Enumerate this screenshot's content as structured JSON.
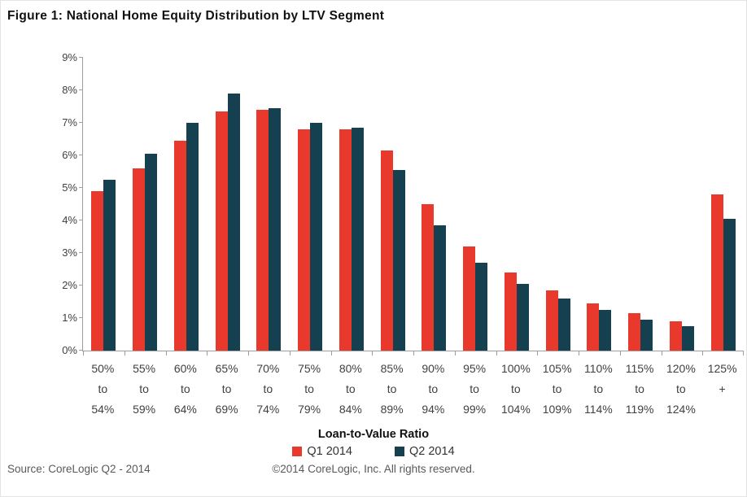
{
  "title": "Figure 1: National Home Equity Distribution by LTV Segment",
  "chart_data": {
    "type": "bar",
    "title": "Figure 1: National Home Equity Distribution by LTV Segment",
    "xlabel": "Loan-to-Value Ratio",
    "ylabel": "",
    "ylim": [
      0,
      9
    ],
    "ytick_step": 1,
    "ytick_labels": [
      "0%",
      "1%",
      "2%",
      "3%",
      "4%",
      "5%",
      "6%",
      "7%",
      "8%",
      "9%"
    ],
    "grid": false,
    "legend_position": "bottom",
    "categories": [
      "50% to 54%",
      "55% to 59%",
      "60% to 64%",
      "65% to 69%",
      "70% to 74%",
      "75% to 79%",
      "80% to 84%",
      "85% to 89%",
      "90% to 94%",
      "95% to 99%",
      "100% to 104%",
      "105% to 109%",
      "110% to 114%",
      "115% to 119%",
      "120% to 124%",
      "125% +"
    ],
    "category_lines": [
      [
        "50%",
        "to",
        "54%"
      ],
      [
        "55%",
        "to",
        "59%"
      ],
      [
        "60%",
        "to",
        "64%"
      ],
      [
        "65%",
        "to",
        "69%"
      ],
      [
        "70%",
        "to",
        "74%"
      ],
      [
        "75%",
        "to",
        "79%"
      ],
      [
        "80%",
        "to",
        "84%"
      ],
      [
        "85%",
        "to",
        "89%"
      ],
      [
        "90%",
        "to",
        "94%"
      ],
      [
        "95%",
        "to",
        "99%"
      ],
      [
        "100%",
        "to",
        "104%"
      ],
      [
        "105%",
        "to",
        "109%"
      ],
      [
        "110%",
        "to",
        "114%"
      ],
      [
        "115%",
        "to",
        "119%"
      ],
      [
        "120%",
        "to",
        "124%"
      ],
      [
        "125%",
        "+"
      ]
    ],
    "series": [
      {
        "name": "Q1 2014",
        "color": "#e8392c",
        "values": [
          4.9,
          5.6,
          6.45,
          7.35,
          7.4,
          6.8,
          6.8,
          6.15,
          4.5,
          3.2,
          2.4,
          1.85,
          1.45,
          1.15,
          0.9,
          4.8
        ]
      },
      {
        "name": "Q2 2014",
        "color": "#15404f",
        "values": [
          5.25,
          6.05,
          7.0,
          7.9,
          7.45,
          7.0,
          6.85,
          5.55,
          3.85,
          2.7,
          2.05,
          1.6,
          1.25,
          0.95,
          0.75,
          4.05
        ]
      }
    ],
    "axis_line_color": "#9e9e9e",
    "tick_label_color": "#404040"
  },
  "footer": {
    "source": "Source: CoreLogic Q2 - 2014",
    "copyright": "©2014 CoreLogic, Inc. All rights reserved."
  }
}
